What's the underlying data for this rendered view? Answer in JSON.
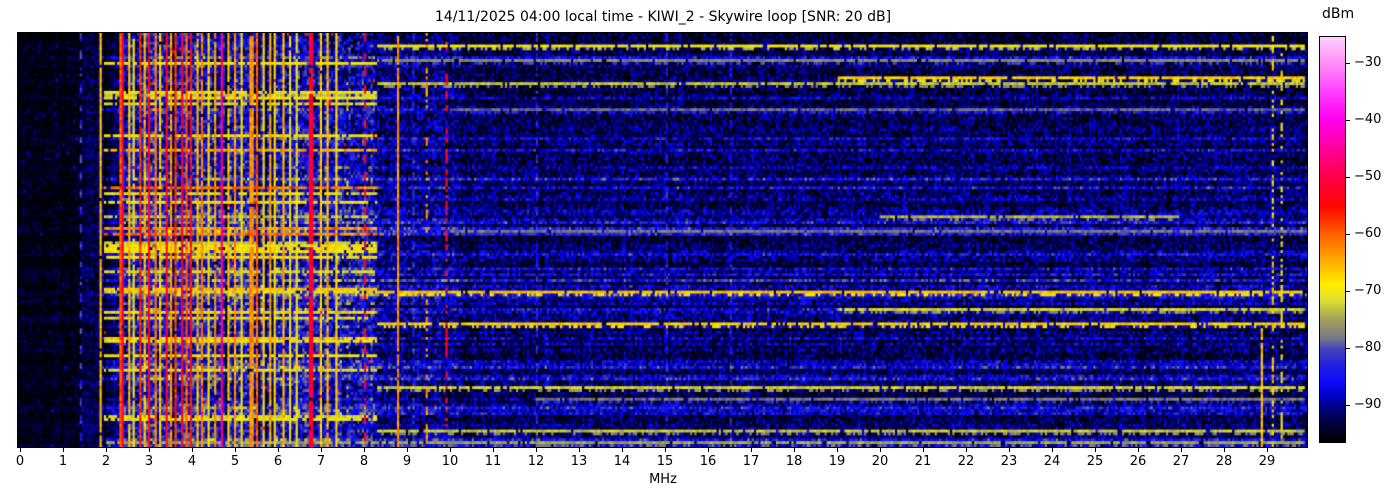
{
  "chart_data": {
    "type": "heatmap",
    "title": "14/11/2025 04:00 local time - KIWI_2 - Skywire loop [SNR: 20 dB]",
    "xlabel": "MHz",
    "x_ticks": [
      "0",
      "1",
      "2",
      "3",
      "4",
      "5",
      "6",
      "7",
      "8",
      "9",
      "10",
      "11",
      "12",
      "13",
      "14",
      "15",
      "16",
      "17",
      "18",
      "19",
      "20",
      "21",
      "22",
      "23",
      "24",
      "25",
      "26",
      "27",
      "28",
      "29"
    ],
    "x_range_mhz": [
      0,
      29.93
    ],
    "y_axis": "time (no ticks shown)",
    "colorbar": {
      "label": "dBm",
      "ticks": [
        {
          "v": -30,
          "label": "−30"
        },
        {
          "v": -40,
          "label": "−40"
        },
        {
          "v": -50,
          "label": "−50"
        },
        {
          "v": -60,
          "label": "−60"
        },
        {
          "v": -70,
          "label": "−70"
        },
        {
          "v": -80,
          "label": "−80"
        },
        {
          "v": -90,
          "label": "−90"
        }
      ],
      "vmin": -96.5,
      "vmax": -25.4
    },
    "colormap_stops": [
      {
        "v": -96.5,
        "c": "#000000"
      },
      {
        "v": -93.0,
        "c": "#000042"
      },
      {
        "v": -90.0,
        "c": "#000090"
      },
      {
        "v": -88.7,
        "c": "#0000c0"
      },
      {
        "v": -85.8,
        "c": "#0d0dff"
      },
      {
        "v": -83.0,
        "c": "#2020e0"
      },
      {
        "v": -80.0,
        "c": "#4747b8"
      },
      {
        "v": -78.4,
        "c": "#77778c"
      },
      {
        "v": -75.0,
        "c": "#a0a058"
      },
      {
        "v": -71.7,
        "c": "#dddd33"
      },
      {
        "v": -68.8,
        "c": "#ffee00"
      },
      {
        "v": -65.2,
        "c": "#ffb400"
      },
      {
        "v": -60.0,
        "c": "#ff6000"
      },
      {
        "v": -55.3,
        "c": "#ff0800"
      },
      {
        "v": -50.0,
        "c": "#ff0048"
      },
      {
        "v": -44.6,
        "c": "#ff00a0"
      },
      {
        "v": -40.0,
        "c": "#ff00f0"
      },
      {
        "v": -36.0,
        "c": "#ff30ff"
      },
      {
        "v": -30.0,
        "c": "#ff8ff5"
      },
      {
        "v": -25.4,
        "c": "#ffd0ff"
      }
    ],
    "seed": 1337,
    "grid": {
      "cols": 585,
      "rows": 143
    },
    "regions": [
      {
        "f0": 0.0,
        "f1": 1.44,
        "base": -95.5,
        "spread": 2.2,
        "spark_p": 0.1,
        "spark_add": 6
      },
      {
        "f0": 1.44,
        "f1": 1.95,
        "base": -93.0,
        "spread": 4.0
      },
      {
        "f0": 1.95,
        "f1": 2.28,
        "base": -93.5,
        "spread": 3.5
      },
      {
        "f0": 2.28,
        "f1": 8.25,
        "base": -87.0,
        "spread": 8.0
      },
      {
        "f0": 8.25,
        "f1": 10.2,
        "base": -91.0,
        "spread": 6.0
      },
      {
        "f0": 10.2,
        "f1": 29.95,
        "base": -92.5,
        "spread": 5.5
      }
    ],
    "probabilities": {
      "broadband_row": 0.3,
      "broadband_min": 3,
      "broadband_max": 12,
      "busy_yellow_row": 0.2,
      "busy_yellow_level": -71,
      "red_dot": 0.004,
      "busy_f0": 1.95,
      "busy_f1": 8.3
    },
    "signal_stripes": [
      {
        "f": 1.4,
        "level": -82,
        "w": 1,
        "style": "dashed"
      },
      {
        "f": 1.86,
        "level": -66,
        "w": 1,
        "style": "solid"
      },
      {
        "f": 2.3,
        "level": -60,
        "w": 1,
        "style": "solid"
      },
      {
        "f": 2.38,
        "level": -52,
        "w": 1,
        "style": "solid"
      },
      {
        "f": 2.5,
        "level": -66,
        "w": 1,
        "style": "solid"
      },
      {
        "f": 2.62,
        "level": -70,
        "w": 1,
        "style": "solid"
      },
      {
        "f": 2.75,
        "level": -57,
        "w": 1,
        "style": "solid"
      },
      {
        "f": 2.88,
        "level": -66,
        "w": 1,
        "style": "solid"
      },
      {
        "f": 3.0,
        "level": -53,
        "w": 1,
        "style": "solid"
      },
      {
        "f": 3.12,
        "level": -62,
        "w": 1,
        "style": "solid"
      },
      {
        "f": 3.25,
        "level": -67,
        "w": 1,
        "style": "solid"
      },
      {
        "f": 3.38,
        "level": -54,
        "w": 1,
        "style": "solid"
      },
      {
        "f": 3.5,
        "level": -64,
        "w": 1,
        "style": "solid"
      },
      {
        "f": 3.6,
        "level": -58,
        "w": 1,
        "style": "solid"
      },
      {
        "f": 3.72,
        "level": -52,
        "w": 1,
        "style": "solid"
      },
      {
        "f": 3.85,
        "level": -60,
        "w": 1,
        "style": "solid"
      },
      {
        "f": 3.95,
        "level": -55,
        "w": 1,
        "style": "solid"
      },
      {
        "f": 4.08,
        "level": -66,
        "w": 1,
        "style": "solid"
      },
      {
        "f": 4.2,
        "level": -62,
        "w": 1,
        "style": "solid"
      },
      {
        "f": 4.35,
        "level": -68,
        "w": 1,
        "style": "solid"
      },
      {
        "f": 4.5,
        "level": -64,
        "w": 1,
        "style": "solid"
      },
      {
        "f": 4.65,
        "level": -46,
        "w": 1,
        "style": "solid"
      },
      {
        "f": 4.8,
        "level": -66,
        "w": 1,
        "style": "solid"
      },
      {
        "f": 4.98,
        "level": -64,
        "w": 1,
        "style": "solid"
      },
      {
        "f": 5.15,
        "level": -69,
        "w": 1,
        "style": "solid"
      },
      {
        "f": 5.35,
        "level": -63,
        "w": 2,
        "style": "solid"
      },
      {
        "f": 5.48,
        "level": -60,
        "w": 1,
        "style": "solid"
      },
      {
        "f": 5.62,
        "level": -68,
        "w": 1,
        "style": "solid"
      },
      {
        "f": 5.78,
        "level": -65,
        "w": 1,
        "style": "solid"
      },
      {
        "f": 5.92,
        "level": -68,
        "w": 1,
        "style": "solid"
      },
      {
        "f": 6.08,
        "level": -66,
        "w": 1,
        "style": "solid"
      },
      {
        "f": 6.25,
        "level": -69,
        "w": 1,
        "style": "solid"
      },
      {
        "f": 6.42,
        "level": -70,
        "w": 1,
        "style": "solid"
      },
      {
        "f": 6.74,
        "level": -52,
        "w": 2,
        "style": "solid"
      },
      {
        "f": 6.95,
        "level": -67,
        "w": 1,
        "style": "solid"
      },
      {
        "f": 7.15,
        "level": -66,
        "w": 1,
        "style": "solid"
      },
      {
        "f": 7.32,
        "level": -68,
        "w": 1,
        "style": "solid"
      },
      {
        "f": 7.6,
        "level": -74,
        "w": 1,
        "style": "sparse"
      },
      {
        "f": 8.0,
        "level": -54,
        "w": 1,
        "style": "dashed"
      },
      {
        "f": 8.77,
        "level": -63,
        "w": 1,
        "style": "solid"
      },
      {
        "f": 9.15,
        "level": -82,
        "w": 1,
        "style": "dashed"
      },
      {
        "f": 9.42,
        "level": -64,
        "w": 1,
        "style": "dotted"
      },
      {
        "f": 9.88,
        "level": -54,
        "w": 1,
        "style": "dotted"
      },
      {
        "f": 11.98,
        "level": -83,
        "w": 1,
        "style": "dashed"
      },
      {
        "f": 15.0,
        "level": -83,
        "w": 1,
        "style": "dashed"
      },
      {
        "f": 16.48,
        "level": -84,
        "w": 1,
        "style": "dashed"
      },
      {
        "f": 28.85,
        "level": -66,
        "w": 1,
        "style": "solid",
        "t0": 0.72,
        "t1": 1.0
      },
      {
        "f": 29.1,
        "level": -67,
        "w": 1,
        "style": "dotted"
      },
      {
        "f": 29.32,
        "level": -70,
        "w": 1,
        "style": "dotted"
      }
    ],
    "broadband_streaks": [
      {
        "t": 0.03,
        "f0": 8.3,
        "f1": 29.9,
        "level": -70
      },
      {
        "t": 0.065,
        "f0": 8.3,
        "f1": 29.9,
        "level": -77
      },
      {
        "t": 0.109,
        "f0": 19.0,
        "f1": 29.9,
        "level": -67
      },
      {
        "t": 0.123,
        "f0": 8.3,
        "f1": 29.9,
        "level": -73
      },
      {
        "t": 0.181,
        "f0": 10.0,
        "f1": 29.9,
        "level": -79
      },
      {
        "t": 0.447,
        "f0": 20.0,
        "f1": 27.0,
        "level": -74
      },
      {
        "t": 0.476,
        "f0": 10.0,
        "f1": 29.9,
        "level": -78
      },
      {
        "t": 0.628,
        "f0": 8.3,
        "f1": 29.9,
        "level": -66
      },
      {
        "t": 0.669,
        "f0": 19.0,
        "f1": 29.9,
        "level": -72
      },
      {
        "t": 0.703,
        "f0": 8.3,
        "f1": 29.9,
        "level": -67
      },
      {
        "t": 0.857,
        "f0": 8.3,
        "f1": 29.9,
        "level": -72
      },
      {
        "t": 0.886,
        "f0": 12.0,
        "f1": 29.9,
        "level": -78
      },
      {
        "t": 0.964,
        "f0": 8.3,
        "f1": 29.9,
        "level": -73
      },
      {
        "t": 0.995,
        "f0": 2.0,
        "f1": 29.9,
        "level": -75
      }
    ]
  }
}
